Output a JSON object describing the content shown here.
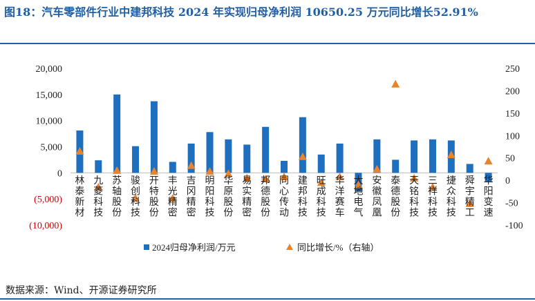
{
  "title": "图18：汽车零部件行业中建邦科技 2024 年实现归母净利润 10650.25 万元同比增长52.91%",
  "source": "数据来源：Wind、开源证券研究所",
  "colors": {
    "bar": "#1f6fbf",
    "marker": "#e8832e",
    "title": "#1f5fa6",
    "negative_tick": "#d00000"
  },
  "chart_data": {
    "type": "bar",
    "categories": [
      "林泰新材",
      "九菱科技",
      "苏轴股份",
      "骏创科技",
      "开特股份",
      "丰光精密",
      "吉冈精密",
      "明阳科技",
      "华原股份",
      "易实精密",
      "邦德股份",
      "同心传动",
      "建邦科技",
      "旺成科技",
      "华洋赛车",
      "大地电气",
      "安徽凤凰",
      "泰德股份",
      "天铭科技",
      "三祥科技",
      "捷众科技",
      "舜宇精工",
      "华阳变速"
    ],
    "series": [
      {
        "name": "2024归母净利润/万元",
        "type": "bar",
        "axis": "left",
        "values": [
          8100,
          2400,
          15000,
          5100,
          13700,
          2100,
          5600,
          7800,
          6400,
          5400,
          8800,
          2300,
          10650.25,
          3500,
          5600,
          -3600,
          6400,
          2500,
          6200,
          6400,
          6200,
          1700,
          -1700
        ]
      },
      {
        "name": "同比增长/%（右轴）",
        "type": "scatter",
        "axis": "right",
        "values": [
          65,
          -15,
          22,
          -40,
          20,
          -40,
          33,
          20,
          15,
          5,
          3,
          8,
          52.91,
          -5,
          8,
          -10,
          25,
          215,
          5,
          -15,
          57,
          -52,
          43
        ]
      }
    ],
    "ylim_left": [
      -10000,
      20000
    ],
    "ylim_right": [
      -100,
      250
    ],
    "yticks_left": [
      "20,000",
      "15,000",
      "10,000",
      "5,000",
      "0",
      "(5,000)",
      "(10,000)"
    ],
    "yticks_right": [
      "250",
      "200",
      "150",
      "100",
      "50",
      "0",
      "-50",
      "-100"
    ],
    "legend_position": "bottom",
    "grid": false
  }
}
